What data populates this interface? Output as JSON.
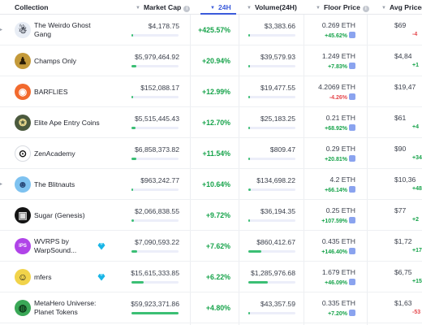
{
  "header": {
    "collection": "Collection",
    "market_cap": "Market Cap",
    "change_24h": "24H",
    "volume": "Volume(24H)",
    "floor_price": "Floor Price",
    "avg_price": "Avg Price(2"
  },
  "rows": [
    {
      "name": "The Weirdo Ghost Gang",
      "market_cap": "$4,178.75",
      "cap_share": 0.02,
      "change": "+425.57%",
      "volume": "$3,383.66",
      "vol_share": 0.02,
      "floor": "0.269 ETH",
      "floor_change": "+45.62%",
      "floor_dir": "pos",
      "avg": "$69",
      "avg_change": "-4",
      "avg_dir": "neg",
      "avatar_color": "#e8edf5",
      "avatar_glyph": "☃",
      "glyph_color": "#3a3f4b",
      "edge": "▸",
      "diamond": false
    },
    {
      "name": "Champs Only",
      "market_cap": "$5,979,464.92",
      "cap_share": 0.1,
      "change": "+20.94%",
      "volume": "$39,579.93",
      "vol_share": 0.03,
      "floor": "1.249 ETH",
      "floor_change": "+7.83%",
      "floor_dir": "pos",
      "avg": "$4,84",
      "avg_change": "+1",
      "avg_dir": "pos",
      "avatar_color": "#c49a3a",
      "avatar_glyph": "♟",
      "glyph_color": "#2b1d07",
      "edge": "",
      "diamond": false
    },
    {
      "name": "BARFLIES",
      "market_cap": "$152,088.17",
      "cap_share": 0.03,
      "change": "+12.99%",
      "volume": "$19,477.55",
      "vol_share": 0.02,
      "floor": "4.2069 ETH",
      "floor_change": "-4.26%",
      "floor_dir": "neg",
      "avg": "$19,47",
      "avg_change": "",
      "avg_dir": "pos",
      "avatar_color": "#f26a2e",
      "avatar_glyph": "◉",
      "glyph_color": "#ffffff",
      "edge": "",
      "diamond": false
    },
    {
      "name": "Elite Ape Entry Coins",
      "market_cap": "$5,515,445.43",
      "cap_share": 0.09,
      "change": "+12.70%",
      "volume": "$25,183.25",
      "vol_share": 0.02,
      "floor": "0.21 ETH",
      "floor_change": "+68.92%",
      "floor_dir": "pos",
      "avg": "$61",
      "avg_change": "+4",
      "avg_dir": "pos",
      "avatar_color": "#4b5a3e",
      "avatar_glyph": "✪",
      "glyph_color": "#e2d38a",
      "edge": "",
      "diamond": false
    },
    {
      "name": "ZenAcademy",
      "market_cap": "$6,858,373.82",
      "cap_share": 0.11,
      "change": "+11.54%",
      "volume": "$809.47",
      "vol_share": 0.01,
      "floor": "0.29 ETH",
      "floor_change": "+20.81%",
      "floor_dir": "pos",
      "avg": "$90",
      "avg_change": "+34",
      "avg_dir": "pos",
      "avatar_color": "#ffffff",
      "avatar_glyph": "⊙",
      "glyph_color": "#111111",
      "edge": "",
      "diamond": false
    },
    {
      "name": "The Blitnauts",
      "market_cap": "$963,242.77",
      "cap_share": 0.04,
      "change": "+10.64%",
      "volume": "$134,698.22",
      "vol_share": 0.05,
      "floor": "4.2 ETH",
      "floor_change": "+66.14%",
      "floor_dir": "pos",
      "avg": "$10,36",
      "avg_change": "+48",
      "avg_dir": "pos",
      "avatar_color": "#7ec2f0",
      "avatar_glyph": "☻",
      "glyph_color": "#2a4a7a",
      "edge": "▸",
      "diamond": false
    },
    {
      "name": "Sugar (Genesis)",
      "market_cap": "$2,066,838.55",
      "cap_share": 0.05,
      "change": "+9.72%",
      "volume": "$36,194.35",
      "vol_share": 0.02,
      "floor": "0.25 ETH",
      "floor_change": "+107.59%",
      "floor_dir": "pos",
      "avg": "$77",
      "avg_change": "+2",
      "avg_dir": "pos",
      "avatar_color": "#141414",
      "avatar_glyph": "▣",
      "glyph_color": "#dcdcdc",
      "edge": "",
      "diamond": false
    },
    {
      "name": "WVRPS by WarpSound...",
      "market_cap": "$7,090,593.22",
      "cap_share": 0.12,
      "change": "+7.62%",
      "volume": "$860,412.67",
      "vol_share": 0.28,
      "floor": "0.435 ETH",
      "floor_change": "+146.40%",
      "floor_dir": "pos",
      "avg": "$1,72",
      "avg_change": "+174",
      "avg_dir": "pos",
      "avatar_color": "#b044e8",
      "avatar_glyph": "IPS",
      "glyph_color": "#ffffff",
      "edge": "",
      "diamond": true
    },
    {
      "name": "mfers",
      "market_cap": "$15,615,333.85",
      "cap_share": 0.26,
      "change": "+6.22%",
      "volume": "$1,285,976.68",
      "vol_share": 0.42,
      "floor": "1.679 ETH",
      "floor_change": "+46.09%",
      "floor_dir": "pos",
      "avg": "$6,75",
      "avg_change": "+15",
      "avg_dir": "pos",
      "avatar_color": "#f1d34a",
      "avatar_glyph": "☺",
      "glyph_color": "#1a1a1a",
      "edge": "",
      "diamond": true
    },
    {
      "name": "MetaHero Universe: Planet Tokens",
      "market_cap": "$59,923,371.86",
      "cap_share": 1.0,
      "change": "+4.80%",
      "volume": "$43,357.59",
      "vol_share": 0.02,
      "floor": "0.335 ETH",
      "floor_change": "+7.20%",
      "floor_dir": "pos",
      "avg": "$1,63",
      "avg_change": "-53",
      "avg_dir": "neg",
      "avatar_color": "#3aa857",
      "avatar_glyph": "◍",
      "glyph_color": "#0d3b1a",
      "edge": "",
      "diamond": false
    }
  ]
}
